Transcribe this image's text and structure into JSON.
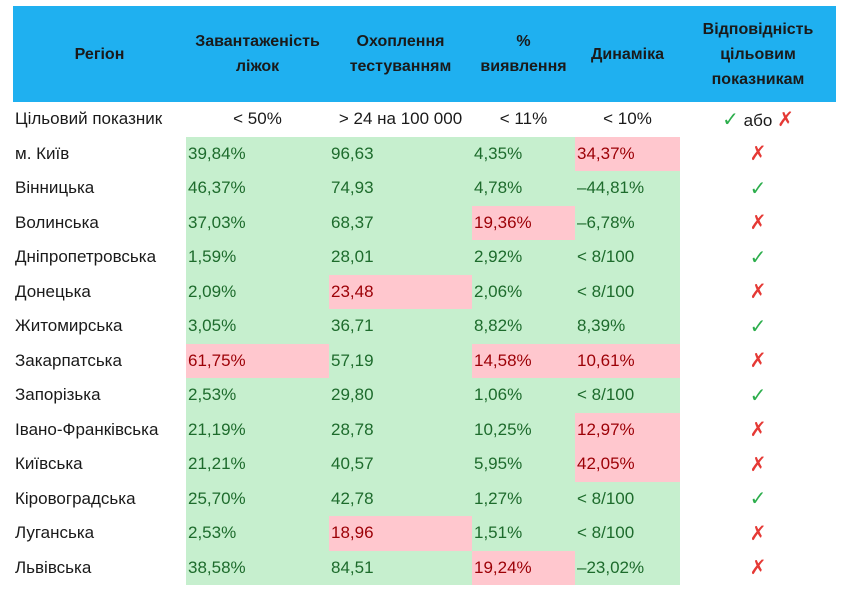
{
  "headers": {
    "region": "Регіон",
    "beds": "Завантаженість ліжок",
    "testing": "Охоплення тестуванням",
    "detection": "% виявлення",
    "dynamics": "Динаміка",
    "compliance": "Відповідність цільовим показникам"
  },
  "target": {
    "label": "Цільовий показник",
    "beds": "< 50%",
    "testing": "> 24 на 100 000",
    "detection": "< 11%",
    "dynamics": "< 10%",
    "check": "✓",
    "or": "або",
    "cross": "✗"
  },
  "rows": [
    {
      "region": "м. Київ",
      "beds": "39,84%",
      "beds_ok": true,
      "testing": "96,63",
      "testing_ok": true,
      "detection": "4,35%",
      "detection_ok": true,
      "dynamics": "34,37%",
      "dynamics_ok": false,
      "compliance": "✗",
      "compliant": false
    },
    {
      "region": "Вінницька",
      "beds": "46,37%",
      "beds_ok": true,
      "testing": "74,93",
      "testing_ok": true,
      "detection": "4,78%",
      "detection_ok": true,
      "dynamics": "–44,81%",
      "dynamics_ok": true,
      "compliance": "✓",
      "compliant": true
    },
    {
      "region": "Волинська",
      "beds": "37,03%",
      "beds_ok": true,
      "testing": "68,37",
      "testing_ok": true,
      "detection": "19,36%",
      "detection_ok": false,
      "dynamics": "–6,78%",
      "dynamics_ok": true,
      "compliance": "✗",
      "compliant": false
    },
    {
      "region": "Дніпропетровська",
      "beds": "1,59%",
      "beds_ok": true,
      "testing": "28,01",
      "testing_ok": true,
      "detection": "2,92%",
      "detection_ok": true,
      "dynamics": "< 8/100",
      "dynamics_ok": true,
      "compliance": "✓",
      "compliant": true
    },
    {
      "region": "Донецька",
      "beds": "2,09%",
      "beds_ok": true,
      "testing": "23,48",
      "testing_ok": false,
      "detection": "2,06%",
      "detection_ok": true,
      "dynamics": "< 8/100",
      "dynamics_ok": true,
      "compliance": "✗",
      "compliant": false
    },
    {
      "region": "Житомирська",
      "beds": "3,05%",
      "beds_ok": true,
      "testing": "36,71",
      "testing_ok": true,
      "detection": "8,82%",
      "detection_ok": true,
      "dynamics": "8,39%",
      "dynamics_ok": true,
      "compliance": "✓",
      "compliant": true
    },
    {
      "region": "Закарпатська",
      "beds": "61,75%",
      "beds_ok": false,
      "testing": "57,19",
      "testing_ok": true,
      "detection": "14,58%",
      "detection_ok": false,
      "dynamics": "10,61%",
      "dynamics_ok": false,
      "compliance": "✗",
      "compliant": false
    },
    {
      "region": "Запорізька",
      "beds": "2,53%",
      "beds_ok": true,
      "testing": "29,80",
      "testing_ok": true,
      "detection": "1,06%",
      "detection_ok": true,
      "dynamics": "< 8/100",
      "dynamics_ok": true,
      "compliance": "✓",
      "compliant": true
    },
    {
      "region": "Івано-Франківська",
      "beds": "21,19%",
      "beds_ok": true,
      "testing": "28,78",
      "testing_ok": true,
      "detection": "10,25%",
      "detection_ok": true,
      "dynamics": "12,97%",
      "dynamics_ok": false,
      "compliance": "✗",
      "compliant": false
    },
    {
      "region": "Київська",
      "beds": "21,21%",
      "beds_ok": true,
      "testing": "40,57",
      "testing_ok": true,
      "detection": "5,95%",
      "detection_ok": true,
      "dynamics": "42,05%",
      "dynamics_ok": false,
      "compliance": "✗",
      "compliant": false
    },
    {
      "region": "Кіровоградська",
      "beds": "25,70%",
      "beds_ok": true,
      "testing": "42,78",
      "testing_ok": true,
      "detection": "1,27%",
      "detection_ok": true,
      "dynamics": "< 8/100",
      "dynamics_ok": true,
      "compliance": "✓",
      "compliant": true
    },
    {
      "region": "Луганська",
      "beds": "2,53%",
      "beds_ok": true,
      "testing": "18,96",
      "testing_ok": false,
      "detection": "1,51%",
      "detection_ok": true,
      "dynamics": "< 8/100",
      "dynamics_ok": true,
      "compliance": "✗",
      "compliant": false
    },
    {
      "region": "Львівська",
      "beds": "38,58%",
      "beds_ok": true,
      "testing": "84,51",
      "testing_ok": true,
      "detection": "19,24%",
      "detection_ok": false,
      "dynamics": "–23,02%",
      "dynamics_ok": true,
      "compliance": "✗",
      "compliant": false
    }
  ],
  "colors": {
    "header_bg": "#1fb0f0",
    "good_bg": "#c6efce",
    "good_text": "#1d6b2c",
    "bad_bg": "#ffc7ce",
    "bad_text": "#9c0006",
    "check": "#2cae4c",
    "cross": "#e53935"
  }
}
